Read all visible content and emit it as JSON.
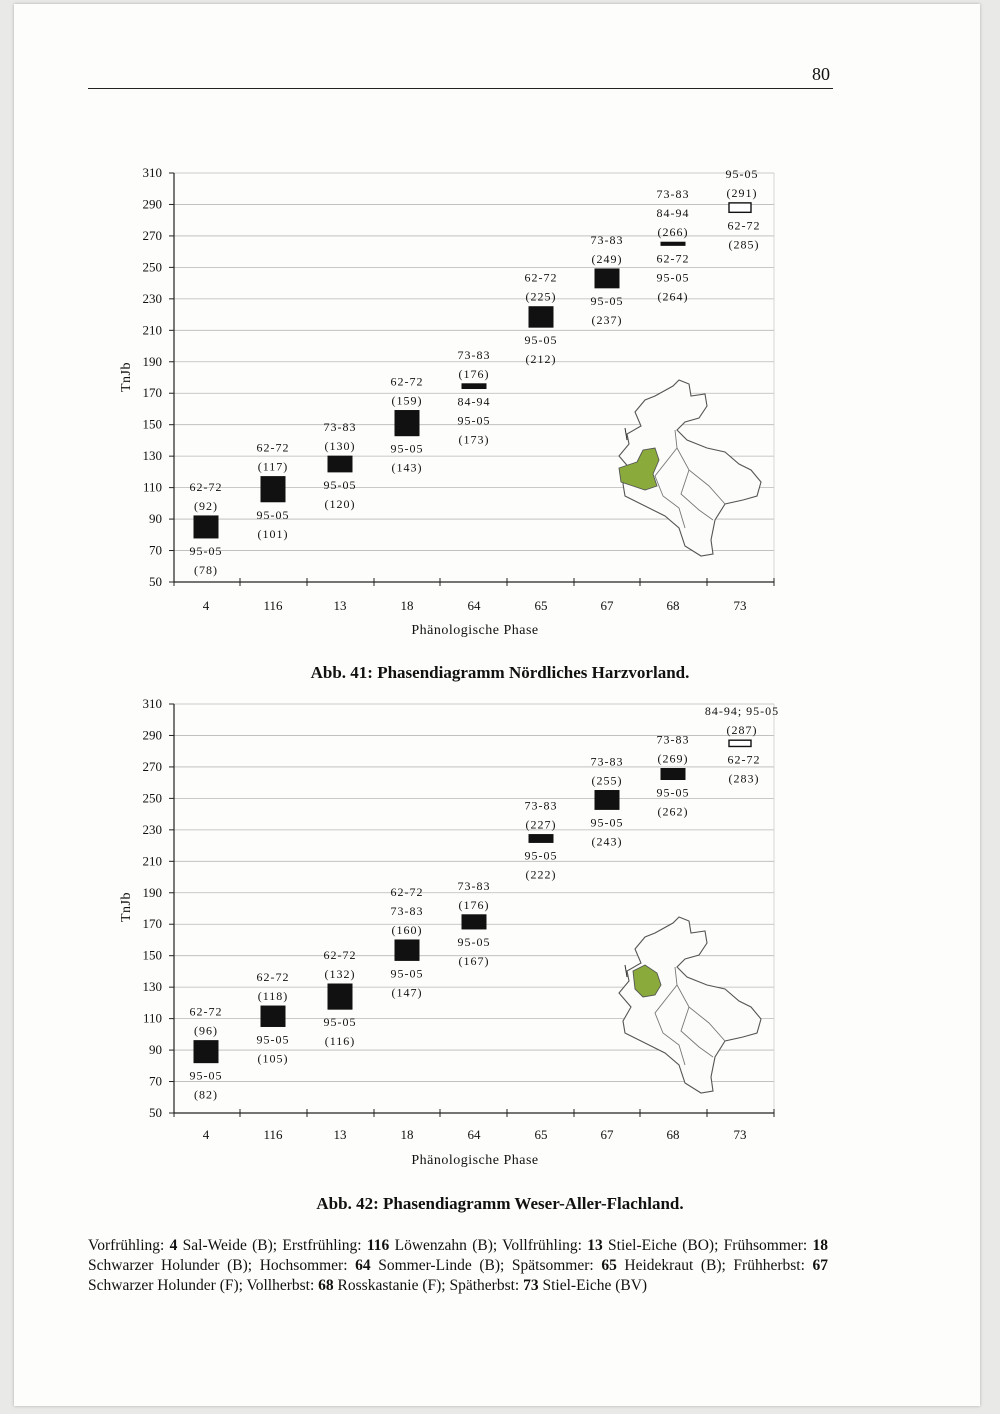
{
  "page": {
    "number": "80"
  },
  "chart_data": [
    {
      "type": "box-range",
      "caption": "Abb. 41: Phasendiagramm Nördliches Harzvorland.",
      "ylabel": "TnJb",
      "xlabel": "Phänologische Phase",
      "ylim": [
        50,
        310
      ],
      "yticks": [
        50,
        70,
        90,
        110,
        130,
        150,
        170,
        190,
        210,
        230,
        250,
        270,
        290,
        310
      ],
      "categories": [
        "4",
        "116",
        "13",
        "18",
        "64",
        "65",
        "67",
        "68",
        "73"
      ],
      "grid": true,
      "boxes": [
        {
          "category": "4",
          "high": 92,
          "low": 78,
          "high_label": [
            "62-72",
            "(92)"
          ],
          "low_label": [
            "95-05",
            "(78)"
          ]
        },
        {
          "category": "116",
          "high": 117,
          "low": 101,
          "high_label": [
            "62-72",
            "(117)"
          ],
          "low_label": [
            "95-05",
            "(101)"
          ]
        },
        {
          "category": "13",
          "high": 130,
          "low": 120,
          "high_label": [
            "73-83",
            "(130)"
          ],
          "low_label": [
            "95-05",
            "(120)"
          ]
        },
        {
          "category": "18",
          "high": 159,
          "low": 143,
          "high_label": [
            "62-72",
            "(159)"
          ],
          "low_label": [
            "95-05",
            "(143)"
          ]
        },
        {
          "category": "64",
          "high": 176,
          "low": 173,
          "high_label": [
            "73-83",
            "(176)"
          ],
          "low_label": [
            "84-94",
            "95-05",
            "(173)"
          ]
        },
        {
          "category": "65",
          "high": 225,
          "low": 212,
          "high_label": [
            "62-72",
            "(225)"
          ],
          "low_label": [
            "95-05",
            "(212)"
          ]
        },
        {
          "category": "67",
          "high": 249,
          "low": 237,
          "high_label": [
            "73-83",
            "(249)"
          ],
          "low_label": [
            "95-05",
            "(237)"
          ]
        },
        {
          "category": "68",
          "high": 266,
          "low": 264,
          "high_label": [
            "73-83",
            "84-94",
            "(266)"
          ],
          "low_label": [
            "62-72",
            "95-05",
            "(264)"
          ]
        },
        {
          "category": "73",
          "high": 291,
          "low": 285,
          "high_label": [
            "95-05",
            "(291)"
          ],
          "low_label": [
            "62-72",
            "(285)"
          ],
          "hollow": true
        }
      ],
      "inset_map": {
        "highlight_color": "#8aab3c",
        "highlight_region": "Nördliches Harzvorland"
      }
    },
    {
      "type": "box-range",
      "caption": "Abb. 42: Phasendiagramm Weser-Aller-Flachland.",
      "ylabel": "TnJb",
      "xlabel": "Phänologische Phase",
      "ylim": [
        50,
        310
      ],
      "yticks": [
        50,
        70,
        90,
        110,
        130,
        150,
        170,
        190,
        210,
        230,
        250,
        270,
        290,
        310
      ],
      "categories": [
        "4",
        "116",
        "13",
        "18",
        "64",
        "65",
        "67",
        "68",
        "73"
      ],
      "grid": true,
      "boxes": [
        {
          "category": "4",
          "high": 96,
          "low": 82,
          "high_label": [
            "62-72",
            "(96)"
          ],
          "low_label": [
            "95-05",
            "(82)"
          ]
        },
        {
          "category": "116",
          "high": 118,
          "low": 105,
          "high_label": [
            "62-72",
            "(118)"
          ],
          "low_label": [
            "95-05",
            "(105)"
          ]
        },
        {
          "category": "13",
          "high": 132,
          "low": 116,
          "high_label": [
            "62-72",
            "(132)"
          ],
          "low_label": [
            "95-05",
            "(116)"
          ]
        },
        {
          "category": "18",
          "high": 160,
          "low": 147,
          "high_label": [
            "62-72",
            "73-83",
            "(160)"
          ],
          "low_label": [
            "95-05",
            "(147)"
          ]
        },
        {
          "category": "64",
          "high": 176,
          "low": 167,
          "high_label": [
            "73-83",
            "(176)"
          ],
          "low_label": [
            "95-05",
            "(167)"
          ]
        },
        {
          "category": "65",
          "high": 227,
          "low": 222,
          "high_label": [
            "73-83",
            "(227)"
          ],
          "low_label": [
            "95-05",
            "(222)"
          ]
        },
        {
          "category": "67",
          "high": 255,
          "low": 243,
          "high_label": [
            "73-83",
            "(255)"
          ],
          "low_label": [
            "95-05",
            "(243)"
          ]
        },
        {
          "category": "68",
          "high": 269,
          "low": 262,
          "high_label": [
            "73-83",
            "(269)"
          ],
          "low_label": [
            "95-05",
            "(262)"
          ]
        },
        {
          "category": "73",
          "high": 287,
          "low": 283,
          "high_label": [
            "84-94; 95-05",
            "(287)"
          ],
          "low_label": [
            "62-72",
            "(283)"
          ],
          "hollow": true
        }
      ],
      "inset_map": {
        "highlight_color": "#8aab3c",
        "highlight_region": "Weser-Aller-Flachland"
      }
    }
  ],
  "footnote": [
    {
      "text": "Vorfrühling: ",
      "bold": false
    },
    {
      "text": "4",
      "bold": true
    },
    {
      "text": " Sal-Weide (B); Erstfrühling: ",
      "bold": false
    },
    {
      "text": "116",
      "bold": true
    },
    {
      "text": " Löwenzahn (B); Vollfrühling: ",
      "bold": false
    },
    {
      "text": "13",
      "bold": true
    },
    {
      "text": " Stiel-Eiche (BO); Frühsommer: ",
      "bold": false
    },
    {
      "text": "18",
      "bold": true
    },
    {
      "text": " Schwarzer Holunder (B); Hochsommer: ",
      "bold": false
    },
    {
      "text": "64",
      "bold": true
    },
    {
      "text": " Sommer-Linde (B); Spätsommer: ",
      "bold": false
    },
    {
      "text": "65",
      "bold": true
    },
    {
      "text": " Heidekraut (B); Frühherbst: ",
      "bold": false
    },
    {
      "text": "67",
      "bold": true
    },
    {
      "text": " Schwarzer Holunder (F); Vollherbst: ",
      "bold": false
    },
    {
      "text": "68",
      "bold": true
    },
    {
      "text": " Rosskastanie (F); Spätherbst: ",
      "bold": false
    },
    {
      "text": "73",
      "bold": true
    },
    {
      "text": " Stiel-Eiche (BV)",
      "bold": false
    }
  ]
}
